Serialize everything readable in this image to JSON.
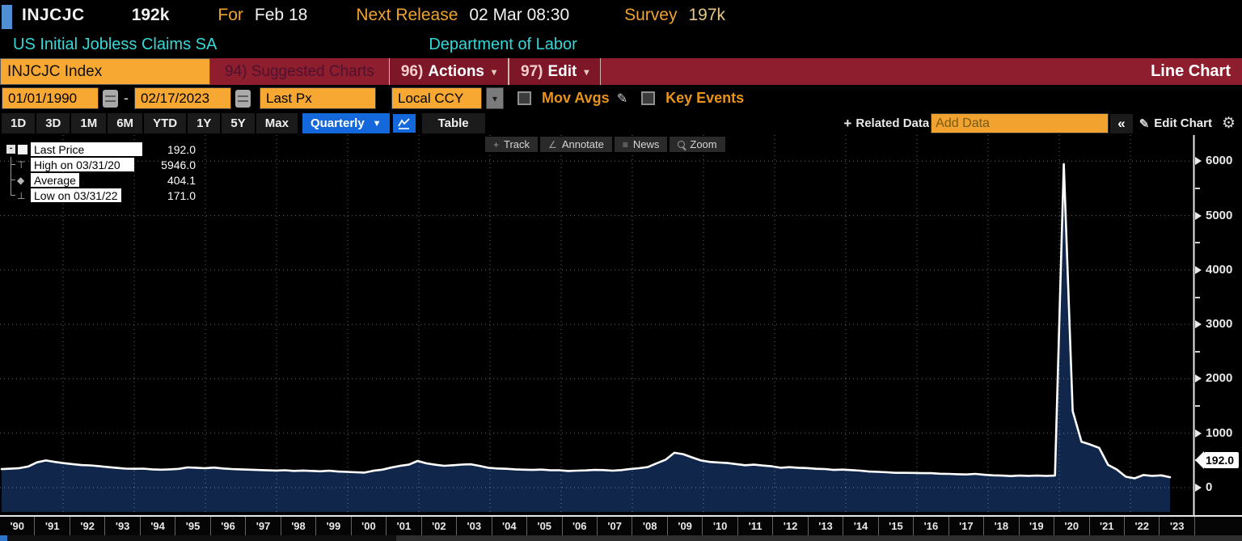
{
  "header": {
    "ticker": "INJCJC",
    "last_value": "192k",
    "for_label": "For",
    "for_date": "Feb 18",
    "next_release_label": "Next Release",
    "next_release_value": "02 Mar 08:30",
    "survey_label": "Survey",
    "survey_value": "197k",
    "security_name": "US Initial Jobless Claims SA",
    "source": "Department of Labor"
  },
  "menubar": {
    "security_field": "INJCJC Index",
    "suggested_num": "94)",
    "suggested_label": "Suggested Charts",
    "actions_num": "96)",
    "actions_label": "Actions",
    "edit_num": "97)",
    "edit_label": "Edit",
    "chart_type": "Line Chart"
  },
  "controls": {
    "start_date": "01/01/1990",
    "end_date": "02/17/2023",
    "field": "Last Px",
    "currency": "Local CCY",
    "mov_avgs_label": "Mov Avgs",
    "key_events_label": "Key Events"
  },
  "toolbar": {
    "ranges": [
      "1D",
      "3D",
      "1M",
      "6M",
      "YTD",
      "1Y",
      "5Y",
      "Max"
    ],
    "period": "Quarterly",
    "table_label": "Table",
    "related_data_label": "Related Data",
    "add_data_placeholder": "Add Data",
    "collapse_label": "«",
    "edit_chart_label": "Edit Chart"
  },
  "chart_tools": [
    {
      "label": "Track",
      "icon": "track-crosshair-icon"
    },
    {
      "label": "Annotate",
      "icon": "annotate-pencil-icon"
    },
    {
      "label": "News",
      "icon": "news-lines-icon"
    },
    {
      "label": "Zoom",
      "icon": "zoom-magnifier-icon"
    }
  ],
  "legend": {
    "rows": [
      {
        "label": "Last Price",
        "value": "192.0",
        "marker": "swatch"
      },
      {
        "label": "High on 03/31/20",
        "value": "5946.0",
        "marker": "high"
      },
      {
        "label": "Average",
        "value": "404.1",
        "marker": "average"
      },
      {
        "label": "Low on 03/31/22",
        "value": "171.0",
        "marker": "low"
      }
    ]
  },
  "chart_data": {
    "type": "area",
    "title": "US Initial Jobless Claims SA (INJCJC Index), Quarterly",
    "frequency": "quarterly",
    "x_start_year": 1990,
    "x_end_label": "2023 Q1",
    "values": [
      340,
      348,
      358,
      388,
      465,
      500,
      472,
      450,
      432,
      415,
      408,
      395,
      378,
      362,
      350,
      346,
      350,
      336,
      330,
      336,
      345,
      372,
      366,
      356,
      368,
      352,
      342,
      336,
      330,
      324,
      318,
      314,
      320,
      308,
      314,
      308,
      300,
      310,
      296,
      290,
      282,
      276,
      310,
      330,
      368,
      400,
      422,
      490,
      446,
      420,
      402,
      412,
      424,
      430,
      400,
      364,
      352,
      346,
      336,
      330,
      326,
      332,
      320,
      320,
      306,
      312,
      316,
      326,
      322,
      312,
      322,
      342,
      356,
      378,
      448,
      512,
      640,
      616,
      556,
      500,
      472,
      462,
      452,
      432,
      412,
      422,
      406,
      392,
      366,
      376,
      366,
      360,
      346,
      342,
      326,
      332,
      322,
      312,
      296,
      290,
      282,
      272,
      272,
      270,
      266,
      266,
      256,
      252,
      246,
      242,
      252,
      236,
      226,
      222,
      212,
      222,
      216,
      222,
      216,
      222,
      5946,
      1408,
      842,
      790,
      730,
      418,
      332,
      200,
      171,
      232,
      216,
      226,
      192
    ],
    "ylim": [
      0,
      6480
    ],
    "y_ticks": [
      0,
      1000,
      2000,
      3000,
      4000,
      5000,
      6000
    ],
    "x_tick_labels": [
      "'90",
      "'91",
      "'92",
      "'93",
      "'94",
      "'95",
      "'96",
      "'97",
      "'98",
      "'99",
      "'00",
      "'01",
      "'02",
      "'03",
      "'04",
      "'05",
      "'06",
      "'07",
      "'08",
      "'09",
      "'10",
      "'11",
      "'12",
      "'13",
      "'14",
      "'15",
      "'16",
      "'17",
      "'18",
      "'19",
      "'20",
      "'21",
      "'22",
      "'23"
    ],
    "last": 192.0,
    "high": {
      "date": "03/31/20",
      "value": 5946.0
    },
    "low": {
      "date": "03/31/22",
      "value": 171.0
    },
    "average": 404.1,
    "last_price_tag": "192.0",
    "grid": true,
    "legend_position": "top-left",
    "line_color": "#ffffff",
    "fill_color": "#10264a"
  },
  "colors": {
    "accent_orange": "#f7a833",
    "label_orange": "#f0a32e",
    "cyan": "#35d8d8",
    "menubar_red": "#8e1d2d",
    "button_blue": "#1468dc",
    "area_fill": "#10264a",
    "line_white": "#ffffff"
  }
}
